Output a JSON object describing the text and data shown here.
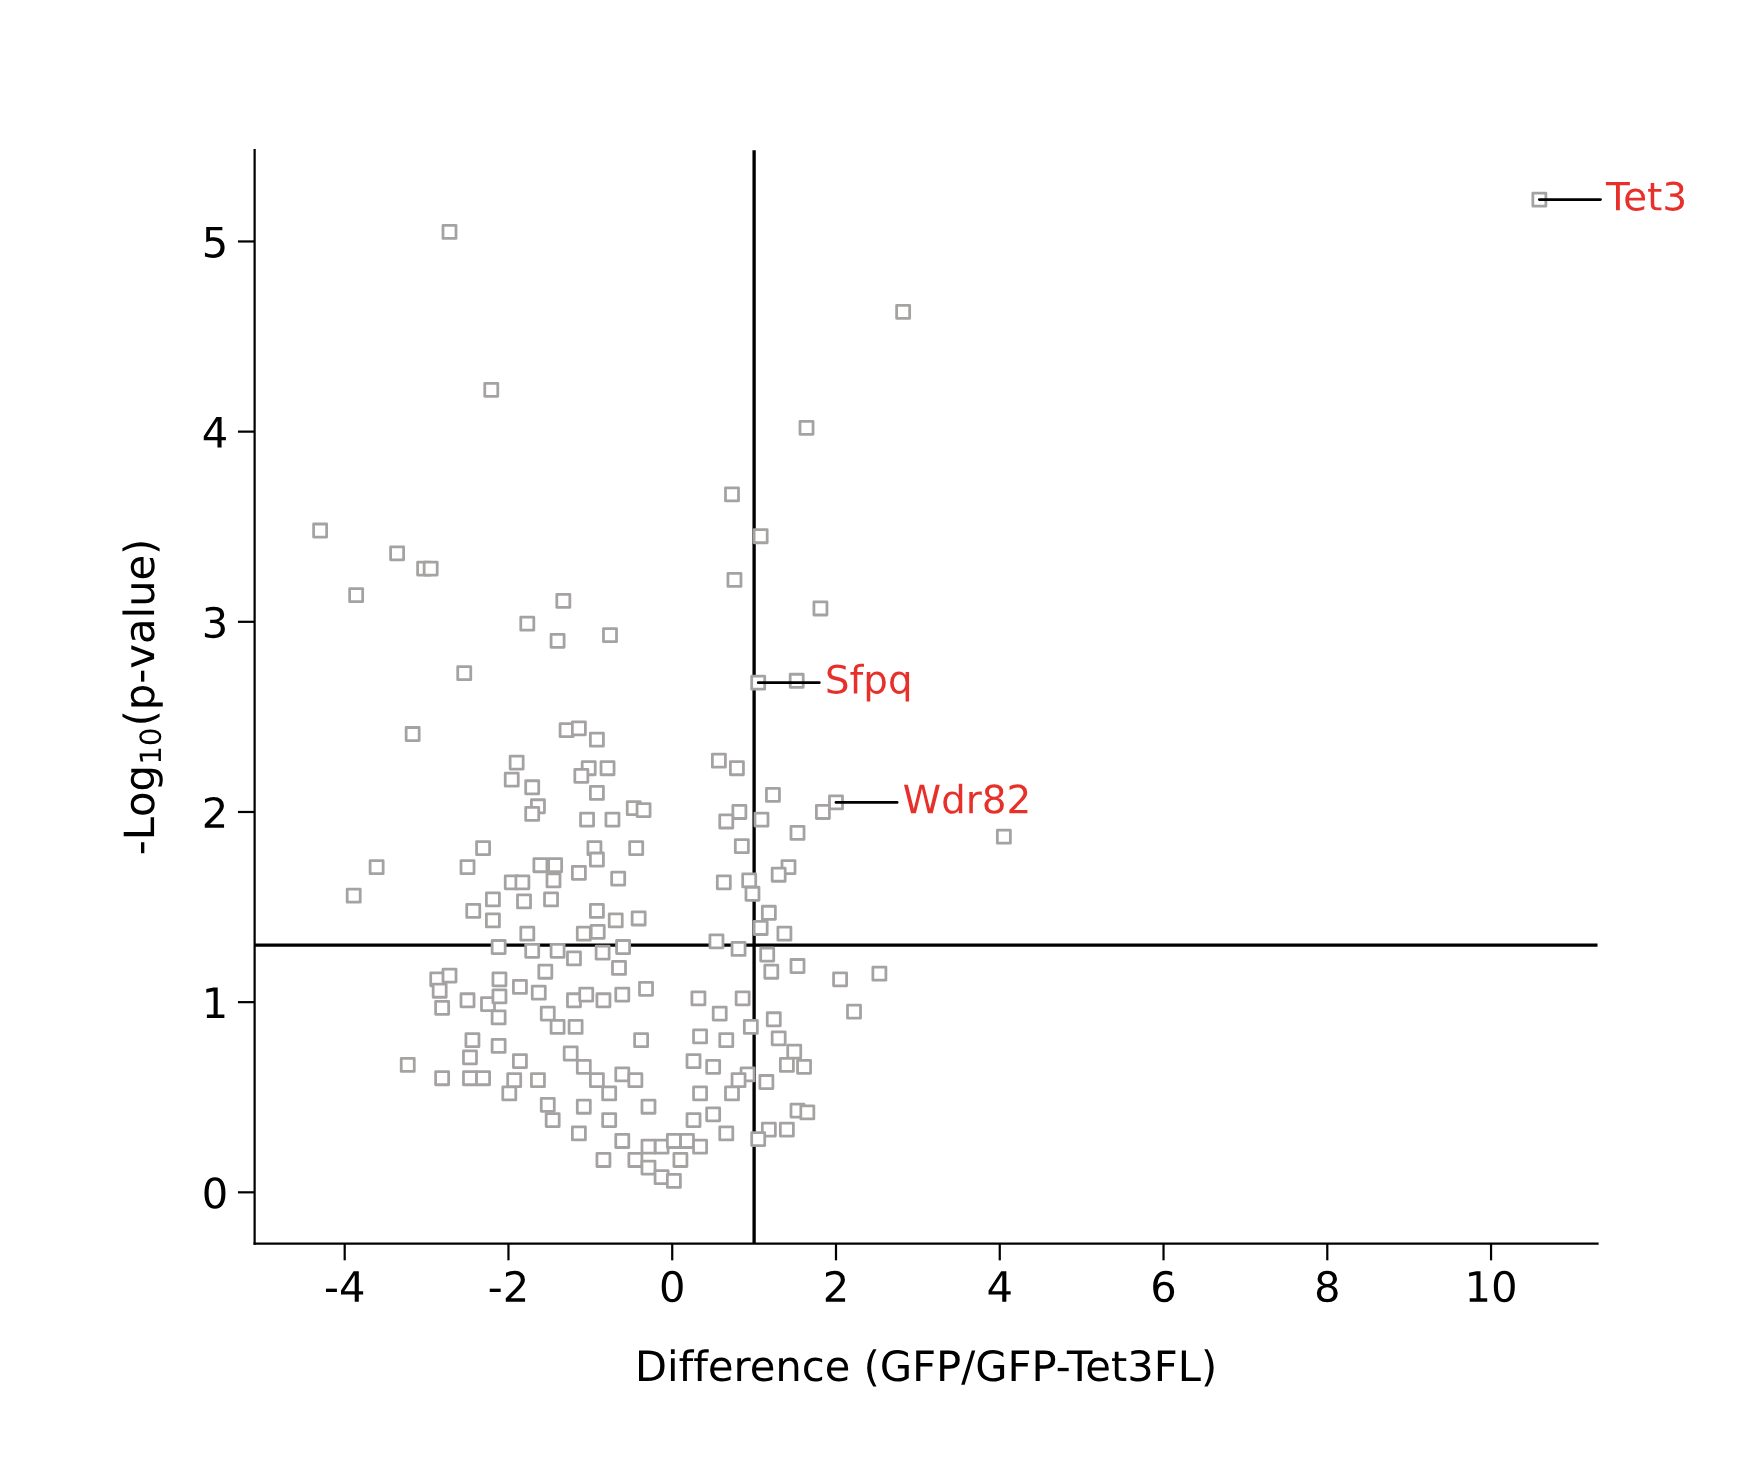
{
  "chart_data": {
    "type": "scatter",
    "xlabel": "Difference (GFP/GFP-Tet3FL)",
    "ylabel": "-Log$_{10}$(p-value)",
    "xlim": [
      -5.1,
      11.3
    ],
    "ylim": [
      -0.27,
      5.48
    ],
    "xticks": [
      -4,
      -2,
      0,
      2,
      4,
      6,
      8,
      10
    ],
    "yticks": [
      0,
      1,
      2,
      3,
      4,
      5
    ],
    "grid": false,
    "legend": false,
    "marker": "square",
    "ref_lines": [
      {
        "axis": "x",
        "value": 1,
        "color": "#000000"
      },
      {
        "axis": "y",
        "value": 1.3,
        "color": "#000000"
      }
    ],
    "annotations": [
      {
        "text": "Tet3",
        "x": 10.59,
        "y": 5.22
      },
      {
        "text": "Sfpq",
        "x": 1.05,
        "y": 2.68
      },
      {
        "text": "Wdr82",
        "x": 2.0,
        "y": 2.05
      }
    ],
    "series": [
      {
        "color": "#a5a2a2",
        "x": [
          -2.72,
          -2.21,
          -4.3,
          -3.36,
          -3.03,
          -2.95,
          -3.86,
          -1.33,
          -1.77,
          -1.4,
          -0.76,
          -2.54,
          0.73,
          1.08,
          0.76,
          1.64,
          1.81,
          1.05,
          1.52,
          10.59,
          2.82,
          2.0,
          1.84,
          4.05,
          0.57,
          0.79,
          1.23,
          0.82,
          0.66,
          1.09,
          1.53,
          0.85,
          0.63,
          0.94,
          1.42,
          1.3,
          0.98,
          1.18,
          1.37,
          1.08,
          1.53,
          2.05,
          2.53,
          2.22,
          1.21,
          1.16,
          1.24,
          1.3,
          1.49,
          1.4,
          1.61,
          1.53,
          1.65,
          1.4,
          1.18,
          1.05,
          0.86,
          0.96,
          0.92,
          1.15,
          -3.17,
          -3.61,
          -3.89,
          -1.29,
          -1.14,
          -0.92,
          -1.9,
          -1.96,
          -1.71,
          -1.64,
          -1.71,
          -1.02,
          -1.11,
          -0.79,
          -0.92,
          -1.04,
          -0.73,
          -0.47,
          -0.35,
          -2.31,
          -2.5,
          -1.61,
          -1.43,
          -0.95,
          -0.92,
          -0.44,
          -1.14,
          -0.66,
          -1.45,
          -1.48,
          -1.96,
          -1.83,
          -2.19,
          -2.43,
          -1.81,
          -0.92,
          -0.69,
          -0.41,
          -2.19,
          -1.77,
          -1.08,
          -0.91,
          -2.12,
          -1.71,
          -1.4,
          -1.2,
          -0.85,
          -0.6,
          -1.55,
          -0.65,
          -2.87,
          -2.72,
          -2.84,
          -2.81,
          -2.5,
          -2.25,
          -2.11,
          -2.11,
          -1.86,
          -1.63,
          -2.12,
          -2.44,
          -2.47,
          -2.12,
          -3.23,
          -2.81,
          -2.47,
          -2.31,
          -1.99,
          -1.93,
          -1.86,
          -1.64,
          -1.52,
          -1.46,
          -1.14,
          -1.52,
          -1.4,
          -1.2,
          -1.18,
          -1.05,
          -0.84,
          -0.61,
          -0.32,
          -1.24,
          -1.08,
          -0.92,
          -0.77,
          -0.61,
          -0.38,
          -0.45,
          -0.29,
          -0.77,
          -0.61,
          -0.45,
          -0.29,
          -0.13,
          0.02,
          0.1,
          0.18,
          0.34,
          0.26,
          0.34,
          0.26,
          0.34,
          0.32,
          -0.84,
          -1.08,
          -0.13,
          0.02,
          -0.29,
          0.54,
          0.81,
          0.58,
          0.66,
          0.5,
          0.73,
          0.66,
          0.5,
          0.81
        ],
        "values": [
          5.05,
          4.22,
          3.48,
          3.36,
          3.28,
          3.28,
          3.14,
          3.11,
          2.99,
          2.9,
          2.93,
          2.73,
          3.67,
          3.45,
          3.22,
          4.02,
          3.07,
          2.68,
          2.69,
          5.22,
          4.63,
          2.05,
          2.0,
          1.87,
          2.27,
          2.23,
          2.09,
          2.0,
          1.95,
          1.96,
          1.89,
          1.82,
          1.63,
          1.64,
          1.71,
          1.67,
          1.57,
          1.47,
          1.36,
          1.39,
          1.19,
          1.12,
          1.15,
          0.95,
          1.16,
          1.25,
          0.91,
          0.81,
          0.74,
          0.67,
          0.66,
          0.43,
          0.42,
          0.33,
          0.33,
          0.28,
          1.02,
          0.87,
          0.62,
          0.58,
          2.41,
          1.71,
          1.56,
          2.43,
          2.44,
          2.38,
          2.26,
          2.17,
          2.13,
          2.03,
          1.99,
          2.23,
          2.19,
          2.23,
          2.1,
          1.96,
          1.96,
          2.02,
          2.01,
          1.81,
          1.71,
          1.72,
          1.72,
          1.81,
          1.75,
          1.81,
          1.68,
          1.65,
          1.64,
          1.54,
          1.63,
          1.63,
          1.54,
          1.48,
          1.53,
          1.48,
          1.43,
          1.44,
          1.43,
          1.36,
          1.36,
          1.37,
          1.29,
          1.27,
          1.27,
          1.23,
          1.26,
          1.29,
          1.16,
          1.18,
          1.12,
          1.14,
          1.06,
          0.97,
          1.01,
          0.99,
          1.12,
          1.03,
          1.08,
          1.05,
          0.92,
          0.8,
          0.71,
          0.77,
          0.67,
          0.6,
          0.6,
          0.6,
          0.52,
          0.59,
          0.69,
          0.59,
          0.46,
          0.38,
          0.31,
          0.94,
          0.87,
          1.01,
          0.87,
          1.04,
          1.01,
          1.04,
          1.07,
          0.73,
          0.66,
          0.59,
          0.52,
          0.62,
          0.8,
          0.59,
          0.45,
          0.38,
          0.27,
          0.17,
          0.13,
          0.08,
          0.06,
          0.17,
          0.27,
          0.24,
          0.38,
          0.52,
          0.69,
          0.82,
          1.02,
          0.17,
          0.45,
          0.24,
          0.27,
          0.24,
          1.32,
          1.28,
          0.94,
          0.8,
          0.66,
          0.52,
          0.31,
          0.41,
          0.59
        ]
      }
    ]
  }
}
